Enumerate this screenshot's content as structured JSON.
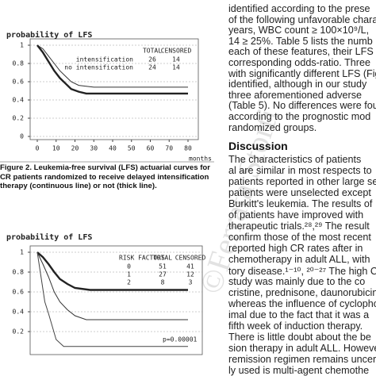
{
  "figures": [
    {
      "y_label": "probability of LFS",
      "x_label": "months",
      "xlim": [
        0,
        80
      ],
      "xticks": [
        0,
        10,
        20,
        30,
        40,
        50,
        60,
        70,
        80
      ],
      "ylim": [
        0,
        1
      ],
      "yticks": [
        0,
        0.2,
        0.4,
        0.6,
        0.8,
        1
      ],
      "grid": true,
      "legend_headers": [
        "TOTAL",
        "CENSORED"
      ],
      "series": [
        {
          "name": "intensification",
          "total": 26,
          "censored": 14,
          "color": "#333333",
          "width": 1,
          "x": [
            0,
            3,
            6,
            9,
            12,
            15,
            18,
            22,
            30,
            80
          ],
          "values": [
            1,
            0.96,
            0.88,
            0.8,
            0.72,
            0.66,
            0.6,
            0.56,
            0.54,
            0.54
          ]
        },
        {
          "name": "no intensification",
          "total": 24,
          "censored": 14,
          "color": "#222222",
          "width": 2.4,
          "x": [
            0,
            3,
            6,
            9,
            12,
            15,
            18,
            22,
            26,
            80
          ],
          "values": [
            1,
            0.92,
            0.82,
            0.72,
            0.64,
            0.58,
            0.52,
            0.49,
            0.47,
            0.47
          ]
        }
      ]
    },
    {
      "y_label": "probability of LFS",
      "xlim": [
        0,
        80
      ],
      "ylim": [
        0,
        1
      ],
      "yticks": [
        0.2,
        0.4,
        0.6,
        0.8,
        1
      ],
      "grid": true,
      "legend_title": "RISK FACTORS",
      "legend_headers": [
        "TOTAL",
        "CENSORED"
      ],
      "annotation": "p=0.00001",
      "series": [
        {
          "name": "0",
          "total": 51,
          "censored": 41,
          "color": "#222222",
          "width": 2.4,
          "x": [
            0,
            3,
            6,
            9,
            12,
            16,
            20,
            28,
            80
          ],
          "values": [
            1,
            0.95,
            0.88,
            0.8,
            0.73,
            0.68,
            0.64,
            0.62,
            0.62
          ]
        },
        {
          "name": "1",
          "total": 27,
          "censored": 12,
          "color": "#333333",
          "width": 1,
          "x": [
            0,
            3,
            6,
            9,
            12,
            16,
            20,
            26,
            80
          ],
          "values": [
            1,
            0.88,
            0.75,
            0.6,
            0.5,
            0.42,
            0.36,
            0.32,
            0.32
          ]
        },
        {
          "name": "2",
          "total": 8,
          "censored": 3,
          "color": "#444444",
          "width": 1,
          "x": [
            0,
            2,
            4,
            6,
            8,
            10,
            14,
            80
          ],
          "values": [
            1,
            0.75,
            0.5,
            0.38,
            0.25,
            0.12,
            0.05,
            0.05
          ]
        }
      ]
    }
  ],
  "caption": [
    "Figure 2. Leukemia-free survival (LFS) actuarial curves for",
    "CR patients randomized to receive delayed intensification",
    "therapy (continuous line) or not (thick line)."
  ],
  "right_column": {
    "lines_before": [
      "identified according to the prese",
      "of the following unfavorable chara",
      "years, WBC count ≥ 100×10⁹/L,",
      "14 ≥ 25%. Table 5 lists the numb",
      "each of these features, their LFS",
      "corresponding odds-ratio. Three",
      "with significantly different LFS (Fig",
      "identified, although in our study",
      "three aforementioned adverse",
      "(Table 5). No differences were fou",
      "according to the prognostic mod",
      "randomized groups."
    ],
    "heading": "Discussion",
    "lines_after": [
      "The characteristics of patients",
      "al are similar in most respects to",
      "patients reported in other large se",
      "patients were unselected except",
      "Burkitt's leukemia. The results of",
      "of patients have improved with",
      "therapeutic trials.²⁸,²⁹ The result",
      "confirm those of the most recent",
      "reported high CR rates after in",
      "chemotherapy in adult ALL, with",
      "tory disease.¹⁻¹⁰, ²⁰⁻²⁷ The high CR",
      "study was mainly due to the co",
      "cristine, prednisone, daunorubicin",
      "whereas the influence of cyclophos",
      "imal due to the fact that it was a",
      "fifth week of induction therapy.",
      "There is little doubt about the be",
      "sion therapy in adult ALL. However",
      "remission regimen remains uncert",
      "ly used is multi-agent chemothe"
    ]
  },
  "watermark": "©Ferrata Storti"
}
